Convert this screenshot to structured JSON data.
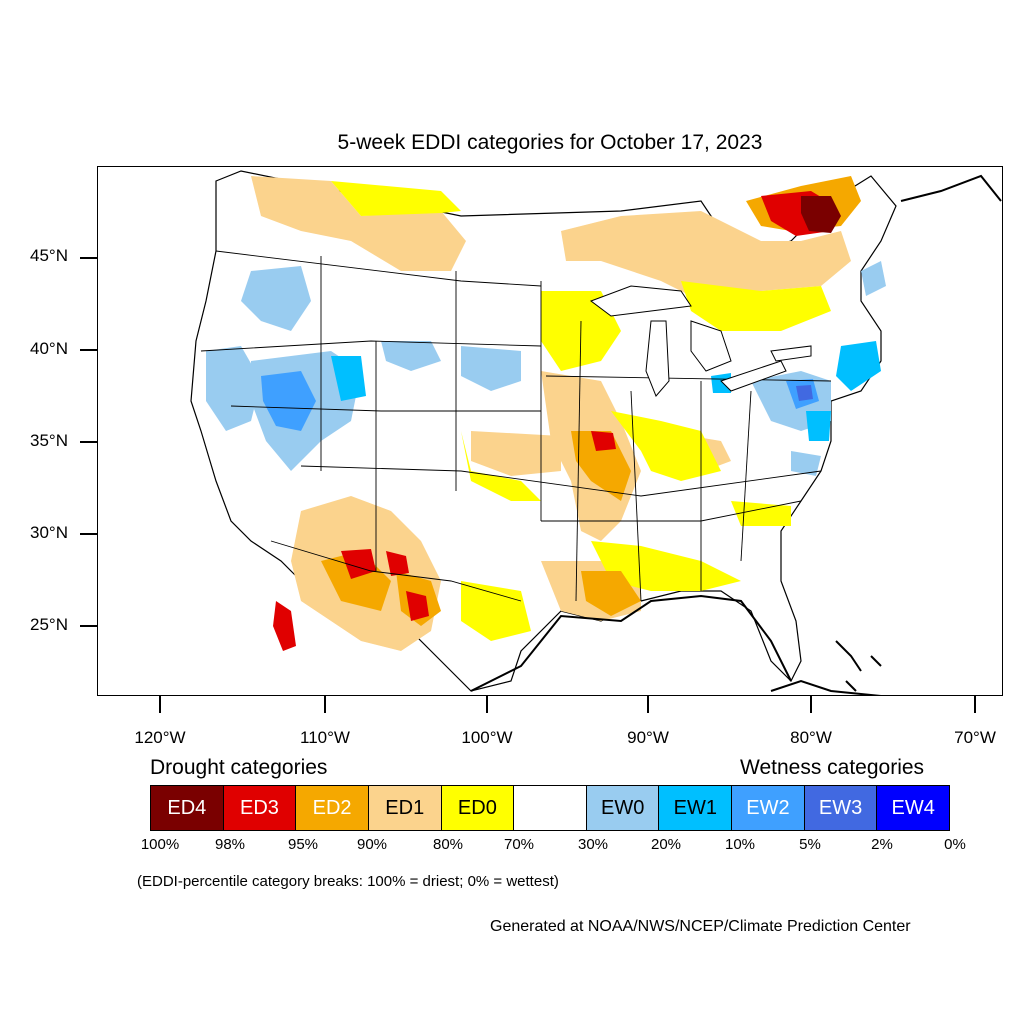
{
  "title": "5-week EDDI categories for October 17, 2023",
  "map": {
    "lat_labels": [
      "45°N",
      "40°N",
      "35°N",
      "30°N",
      "25°N"
    ],
    "lon_labels": [
      "120°W",
      "110°W",
      "100°W",
      "90°W",
      "80°W",
      "70°W"
    ],
    "colors": {
      "ED4": "#7a0000",
      "ED3": "#e00000",
      "ED2": "#f5a800",
      "ED1": "#fbd38d",
      "ED0": "#ffff00",
      "EW0": "#99ccf0",
      "EW1": "#00bfff",
      "EW2": "#3fa0ff",
      "EW3": "#4169e1",
      "EW4": "#0000ff"
    }
  },
  "legend": {
    "drought_heading": "Drought categories",
    "wetness_heading": "Wetness categories",
    "categories": [
      {
        "label": "ED4",
        "color": "#7a0000",
        "text_color": "#ffffff"
      },
      {
        "label": "ED3",
        "color": "#e00000",
        "text_color": "#ffffff"
      },
      {
        "label": "ED2",
        "color": "#f5a800",
        "text_color": "#ffffff"
      },
      {
        "label": "ED1",
        "color": "#fbd38d",
        "text_color": "#000000"
      },
      {
        "label": "ED0",
        "color": "#ffff00",
        "text_color": "#000000"
      },
      {
        "label": "",
        "color": "#ffffff",
        "text_color": "#000000"
      },
      {
        "label": "EW0",
        "color": "#99ccf0",
        "text_color": "#000000"
      },
      {
        "label": "EW1",
        "color": "#00bfff",
        "text_color": "#000000"
      },
      {
        "label": "EW2",
        "color": "#3fa0ff",
        "text_color": "#ffffff"
      },
      {
        "label": "EW3",
        "color": "#4169e1",
        "text_color": "#ffffff"
      },
      {
        "label": "EW4",
        "color": "#0000ff",
        "text_color": "#ffffff"
      }
    ],
    "breaks": [
      "100%",
      "98%",
      "95%",
      "90%",
      "80%",
      "70%",
      "30%",
      "20%",
      "10%",
      "5%",
      "2%",
      "0%"
    ]
  },
  "note": "(EDDI-percentile category breaks: 100% = driest; 0% = wettest)",
  "credit": "Generated at NOAA/NWS/NCEP/Climate Prediction Center"
}
